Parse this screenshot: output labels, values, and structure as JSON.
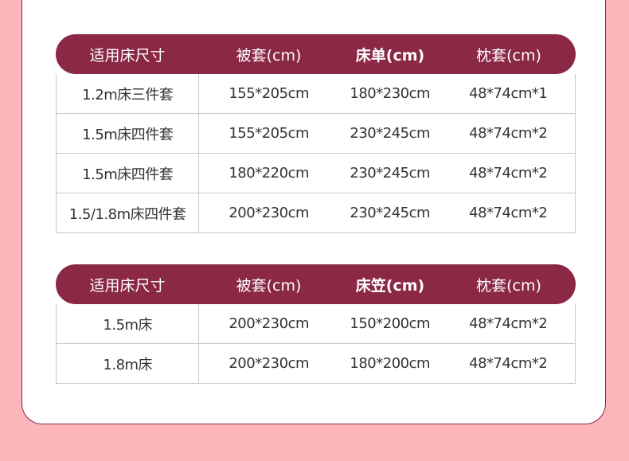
{
  "colors": {
    "background": "#fcb5b8",
    "header": "#8a2846"
  },
  "tables": [
    {
      "headers": [
        "适用床尺寸",
        "被套(cm)",
        "床单(cm)",
        "枕套(cm)"
      ],
      "rows": [
        [
          "1.2m床三件套",
          "155*205cm",
          "180*230cm",
          "48*74cm*1"
        ],
        [
          "1.5m床四件套",
          "155*205cm",
          "230*245cm",
          "48*74cm*2"
        ],
        [
          "1.5m床四件套",
          "180*220cm",
          "230*245cm",
          "48*74cm*2"
        ],
        [
          "1.5/1.8m床四件套",
          "200*230cm",
          "230*245cm",
          "48*74cm*2"
        ]
      ]
    },
    {
      "headers": [
        "适用床尺寸",
        "被套(cm)",
        "床笠(cm)",
        "枕套(cm)"
      ],
      "rows": [
        [
          "1.5m床",
          "200*230cm",
          "150*200cm",
          "48*74cm*2"
        ],
        [
          "1.8m床",
          "200*230cm",
          "180*200cm",
          "48*74cm*2"
        ]
      ]
    }
  ]
}
